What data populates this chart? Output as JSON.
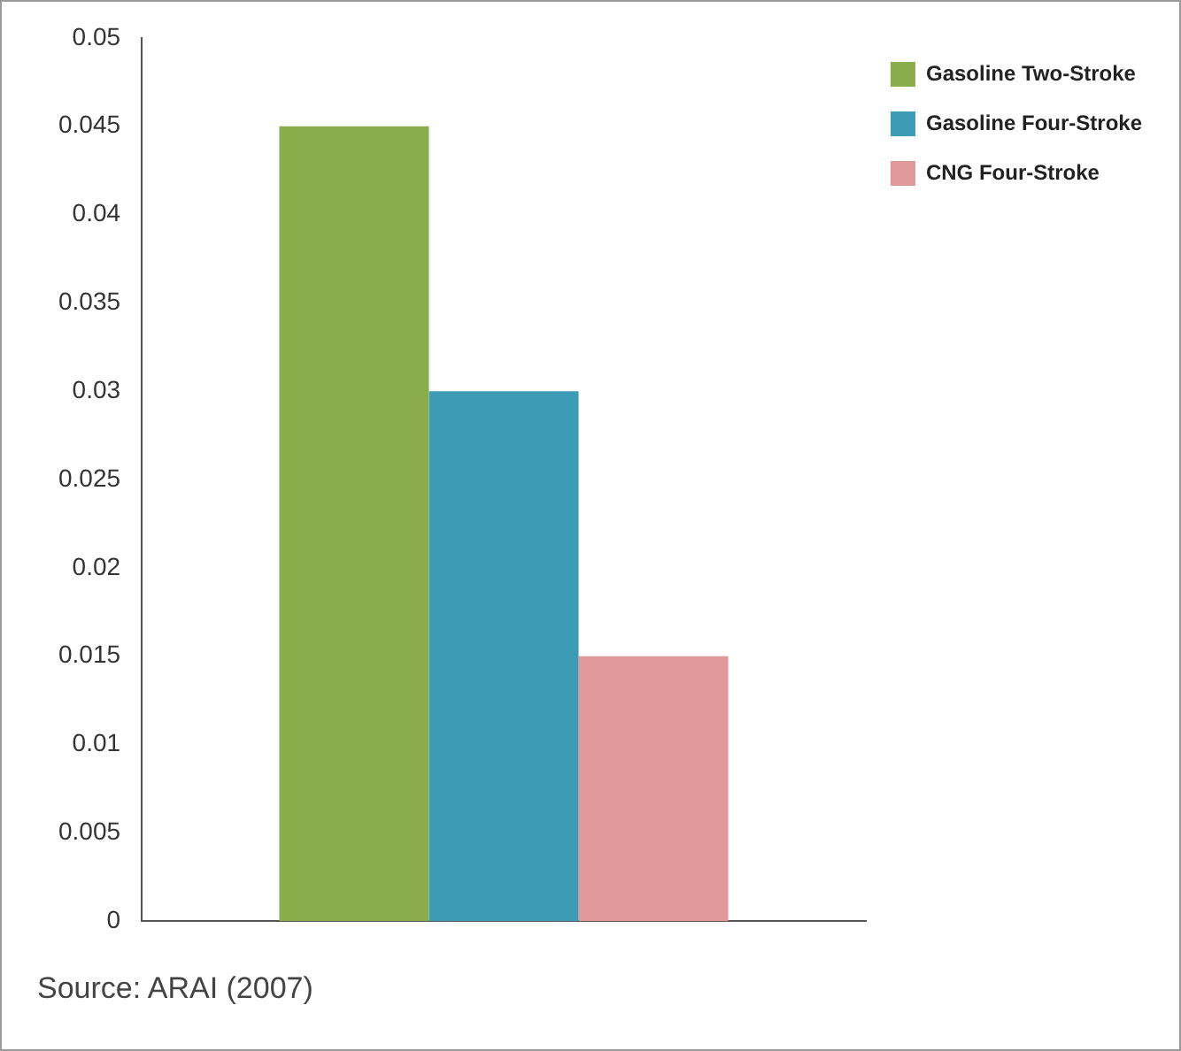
{
  "chart_data": {
    "type": "bar",
    "categories": [
      null
    ],
    "series": [
      {
        "name": "Gasoline Two-Stroke",
        "color": "#8aac4a",
        "values": [
          0.045
        ]
      },
      {
        "name": "Gasoline Four-Stroke",
        "color": "#3d9bb5",
        "values": [
          0.03
        ]
      },
      {
        "name": "CNG Four-Stroke",
        "color": "#e0989a",
        "values": [
          0.015
        ]
      }
    ],
    "ylim": [
      0,
      0.05
    ],
    "yticks": [
      0,
      0.005,
      0.01,
      0.015,
      0.02,
      0.025,
      0.03,
      0.035,
      0.04,
      0.045,
      0.05
    ],
    "grid": false,
    "legend": "top right",
    "tick_labels": "y",
    "annotations": [
      "Source: ARAI (2007)"
    ]
  }
}
